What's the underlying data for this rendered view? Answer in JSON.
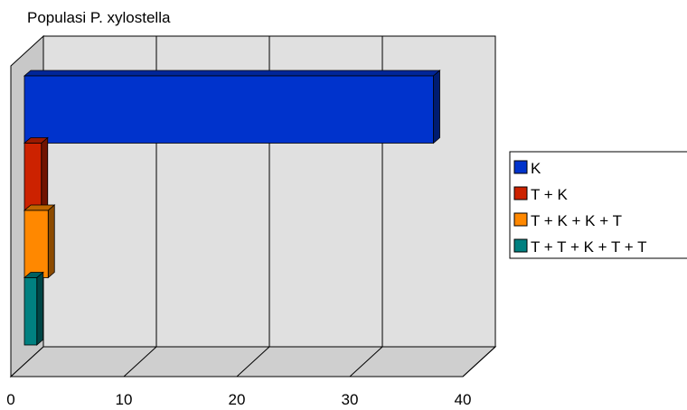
{
  "chart_data": {
    "type": "bar",
    "orientation": "horizontal",
    "style": "3d",
    "title": "Populasi P. xylostella",
    "xlabel": "",
    "ylabel": "",
    "xlim": [
      0,
      40
    ],
    "x_ticks": [
      "0",
      "10",
      "20",
      "30",
      "40"
    ],
    "grid": true,
    "legend_position": "right",
    "series": [
      {
        "name": "K",
        "value": 36.2,
        "color": "#0033cc"
      },
      {
        "name": "T + K",
        "value": 1.5,
        "color": "#cc2200"
      },
      {
        "name": "T + K + K + T",
        "value": 2.1,
        "color": "#ff8800"
      },
      {
        "name": "T + T + K + T + T",
        "value": 1.1,
        "color": "#008080"
      }
    ]
  }
}
